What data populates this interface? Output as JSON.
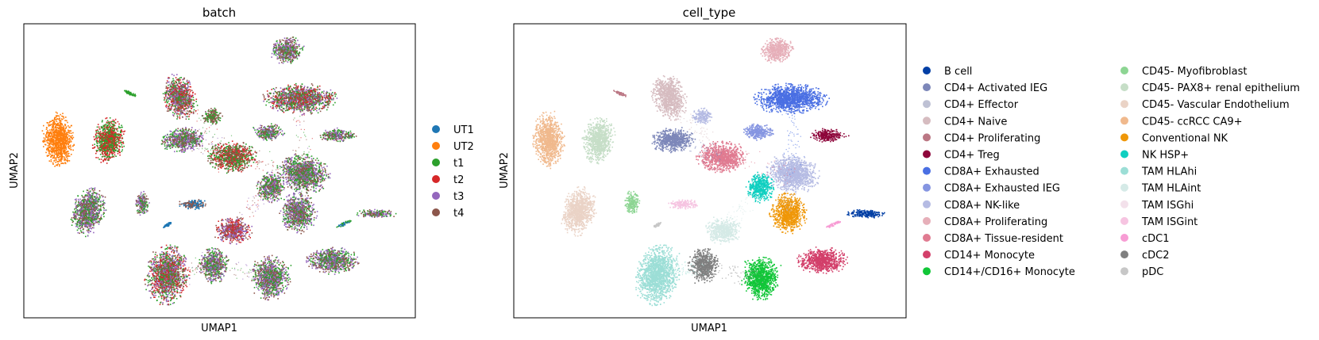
{
  "chart_data": [
    {
      "type": "scatter",
      "title": "batch",
      "xlabel": "UMAP1",
      "ylabel": "UMAP2",
      "ticks": "none",
      "legend_placement": "right",
      "legend": [
        {
          "label": "UT1",
          "color": "#1f77b4"
        },
        {
          "label": "UT2",
          "color": "#ff7f0e"
        },
        {
          "label": "t1",
          "color": "#2ca02c"
        },
        {
          "label": "t2",
          "color": "#d62728"
        },
        {
          "label": "t3",
          "color": "#9467bd"
        },
        {
          "label": "t4",
          "color": "#8c564b"
        }
      ]
    },
    {
      "type": "scatter",
      "title": "cell_type",
      "xlabel": "UMAP1",
      "ylabel": "UMAP2",
      "ticks": "none",
      "legend_placement": "right",
      "legend": [
        {
          "label": "B cell",
          "color": "#023fa5"
        },
        {
          "label": "CD4+ Activated IEG",
          "color": "#7d87b9"
        },
        {
          "label": "CD4+ Effector",
          "color": "#bec1d4"
        },
        {
          "label": "CD4+ Naive",
          "color": "#d6bcc0"
        },
        {
          "label": "CD4+ Proliferating",
          "color": "#bb7784"
        },
        {
          "label": "CD4+ Treg",
          "color": "#8e063b"
        },
        {
          "label": "CD8A+ Exhausted",
          "color": "#4a6fe3"
        },
        {
          "label": "CD8A+ Exhausted IEG",
          "color": "#8595e1"
        },
        {
          "label": "CD8A+ NK-like",
          "color": "#b5bbe3"
        },
        {
          "label": "CD8A+ Proliferating",
          "color": "#e6afb9"
        },
        {
          "label": "CD8A+ Tissue-resident",
          "color": "#e07b91"
        },
        {
          "label": "CD14+ Monocyte",
          "color": "#d33f6a"
        },
        {
          "label": "CD14+/CD16+ Monocyte",
          "color": "#11c638"
        },
        {
          "label": "CD45- Myofibroblast",
          "color": "#8dd593"
        },
        {
          "label": "CD45- PAX8+ renal epithelium",
          "color": "#c6dec7"
        },
        {
          "label": "CD45- Vascular Endothelium",
          "color": "#ead3c6"
        },
        {
          "label": "CD45- ccRCC CA9+",
          "color": "#f0b98d"
        },
        {
          "label": "Conventional NK",
          "color": "#ef9708"
        },
        {
          "label": "NK HSP+",
          "color": "#0fcfc0"
        },
        {
          "label": "TAM HLAhi",
          "color": "#9cded6"
        },
        {
          "label": "TAM HLAint",
          "color": "#d5eae7"
        },
        {
          "label": "TAM ISGhi",
          "color": "#f3e1eb"
        },
        {
          "label": "TAM ISGint",
          "color": "#f6c4e1"
        },
        {
          "label": "cDC1",
          "color": "#f79cd4"
        },
        {
          "label": "cDC2",
          "color": "#7f7f7f"
        },
        {
          "label": "pDC",
          "color": "#c7c7c7"
        }
      ]
    }
  ]
}
